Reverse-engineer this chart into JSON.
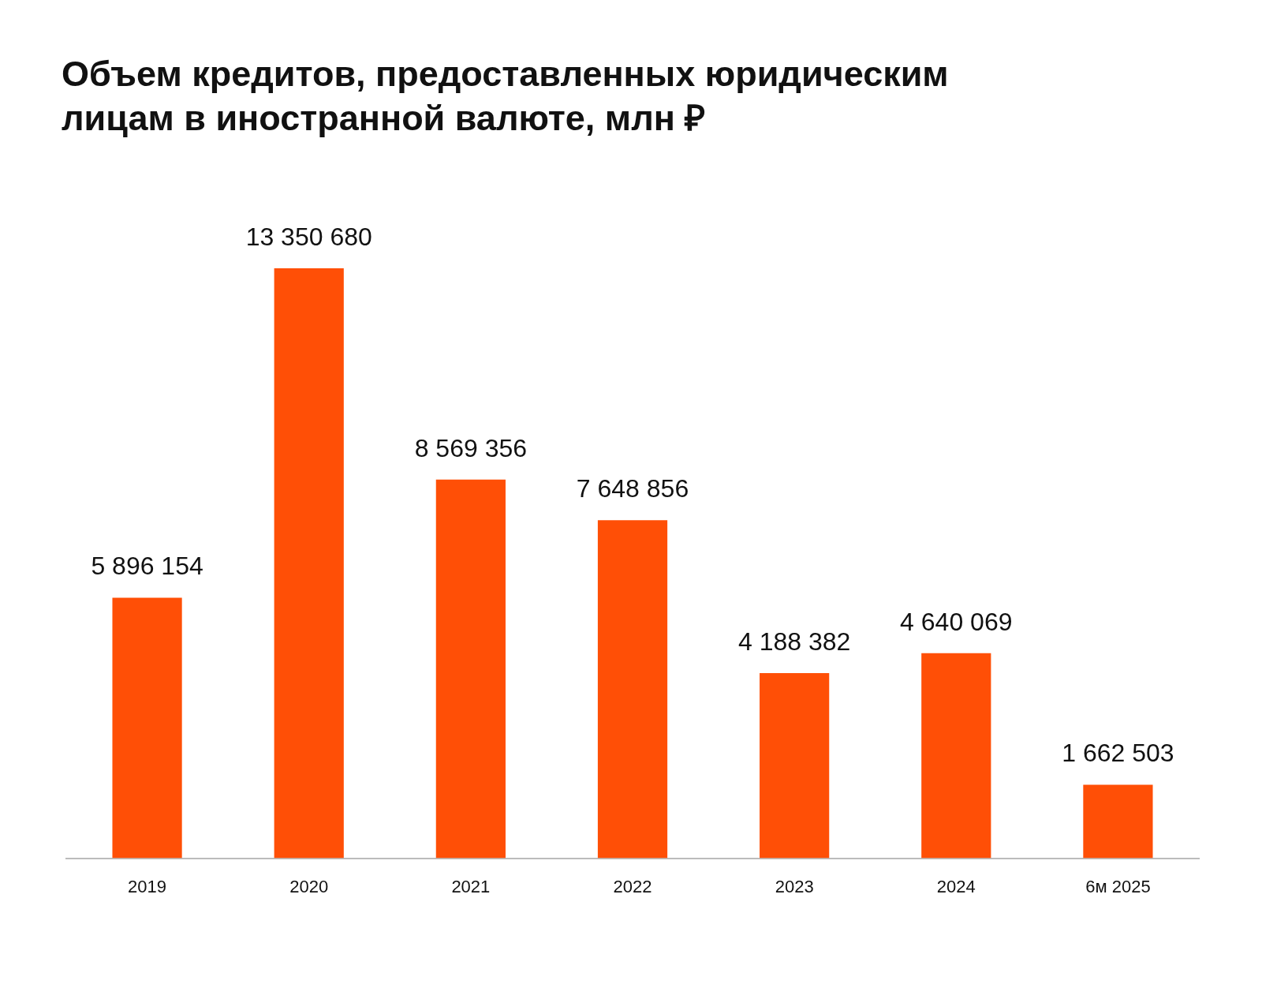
{
  "chart_data": {
    "type": "bar",
    "title": "Объем кредитов, предоставленных юридическим лицам в иностранной валюте, млн ₽",
    "categories": [
      "2019",
      "2020",
      "2021",
      "2022",
      "2023",
      "2024",
      "6м 2025"
    ],
    "values": [
      5896154,
      13350680,
      8569356,
      7648856,
      4188382,
      4640069,
      1662503
    ],
    "color": "#ff4f06",
    "tick_labels": "x",
    "data_labels": true,
    "grid": false,
    "legend": false
  }
}
